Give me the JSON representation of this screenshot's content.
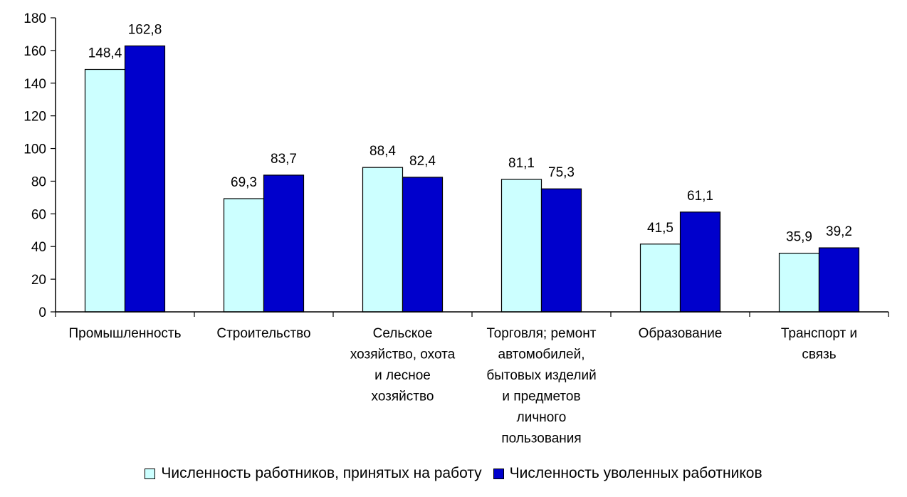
{
  "chart_data": {
    "type": "bar",
    "categories": [
      [
        "Промышленность"
      ],
      [
        "Строительство"
      ],
      [
        "Сельское",
        "хозяйство, охота",
        "и лесное",
        "хозяйство"
      ],
      [
        "Торговля; ремонт",
        "автомобилей,",
        "бытовых изделий",
        "и предметов",
        "личного",
        "пользования"
      ],
      [
        "Образование"
      ],
      [
        "Транспорт и",
        "связь"
      ]
    ],
    "series": [
      {
        "name": "Численность работников, принятых на работу",
        "color": "#ccffff",
        "values": [
          148.4,
          69.3,
          88.4,
          81.1,
          41.5,
          35.9
        ],
        "labels": [
          "148,4",
          "69,3",
          "88,4",
          "81,1",
          "41,5",
          "35,9"
        ]
      },
      {
        "name": "Численность уволенных работников",
        "color": "#0000cc",
        "values": [
          162.8,
          83.7,
          82.4,
          75.3,
          61.1,
          39.2
        ],
        "labels": [
          "162,8",
          "83,7",
          "82,4",
          "75,3",
          "61,1",
          "39,2"
        ]
      }
    ],
    "yticks": [
      0,
      20,
      40,
      60,
      80,
      100,
      120,
      140,
      160,
      180
    ],
    "ylim": [
      0,
      180
    ],
    "grid": false,
    "legend": "bottom"
  }
}
